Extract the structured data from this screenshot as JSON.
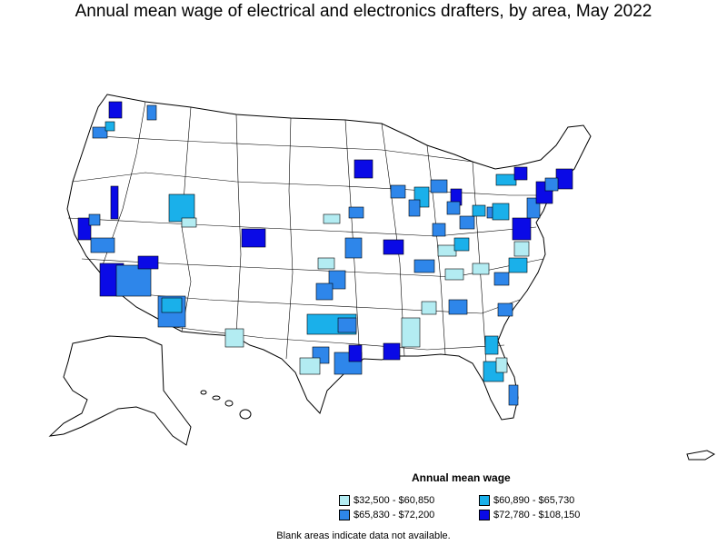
{
  "map": {
    "title": "Annual mean wage of electrical and electronics drafters, by area, May 2022",
    "legend_title": "Annual mean wage",
    "legend": [
      {
        "label": "$32,500 - $60,850",
        "color": "#b3ecf2"
      },
      {
        "label": "$60,890 - $65,730",
        "color": "#1ab0ea"
      },
      {
        "label": "$65,830 - $72,200",
        "color": "#2e86ea"
      },
      {
        "label": "$72,780 - $108,150",
        "color": "#0a0ae6"
      }
    ],
    "footnote": "Blank areas indicate data not available."
  }
}
